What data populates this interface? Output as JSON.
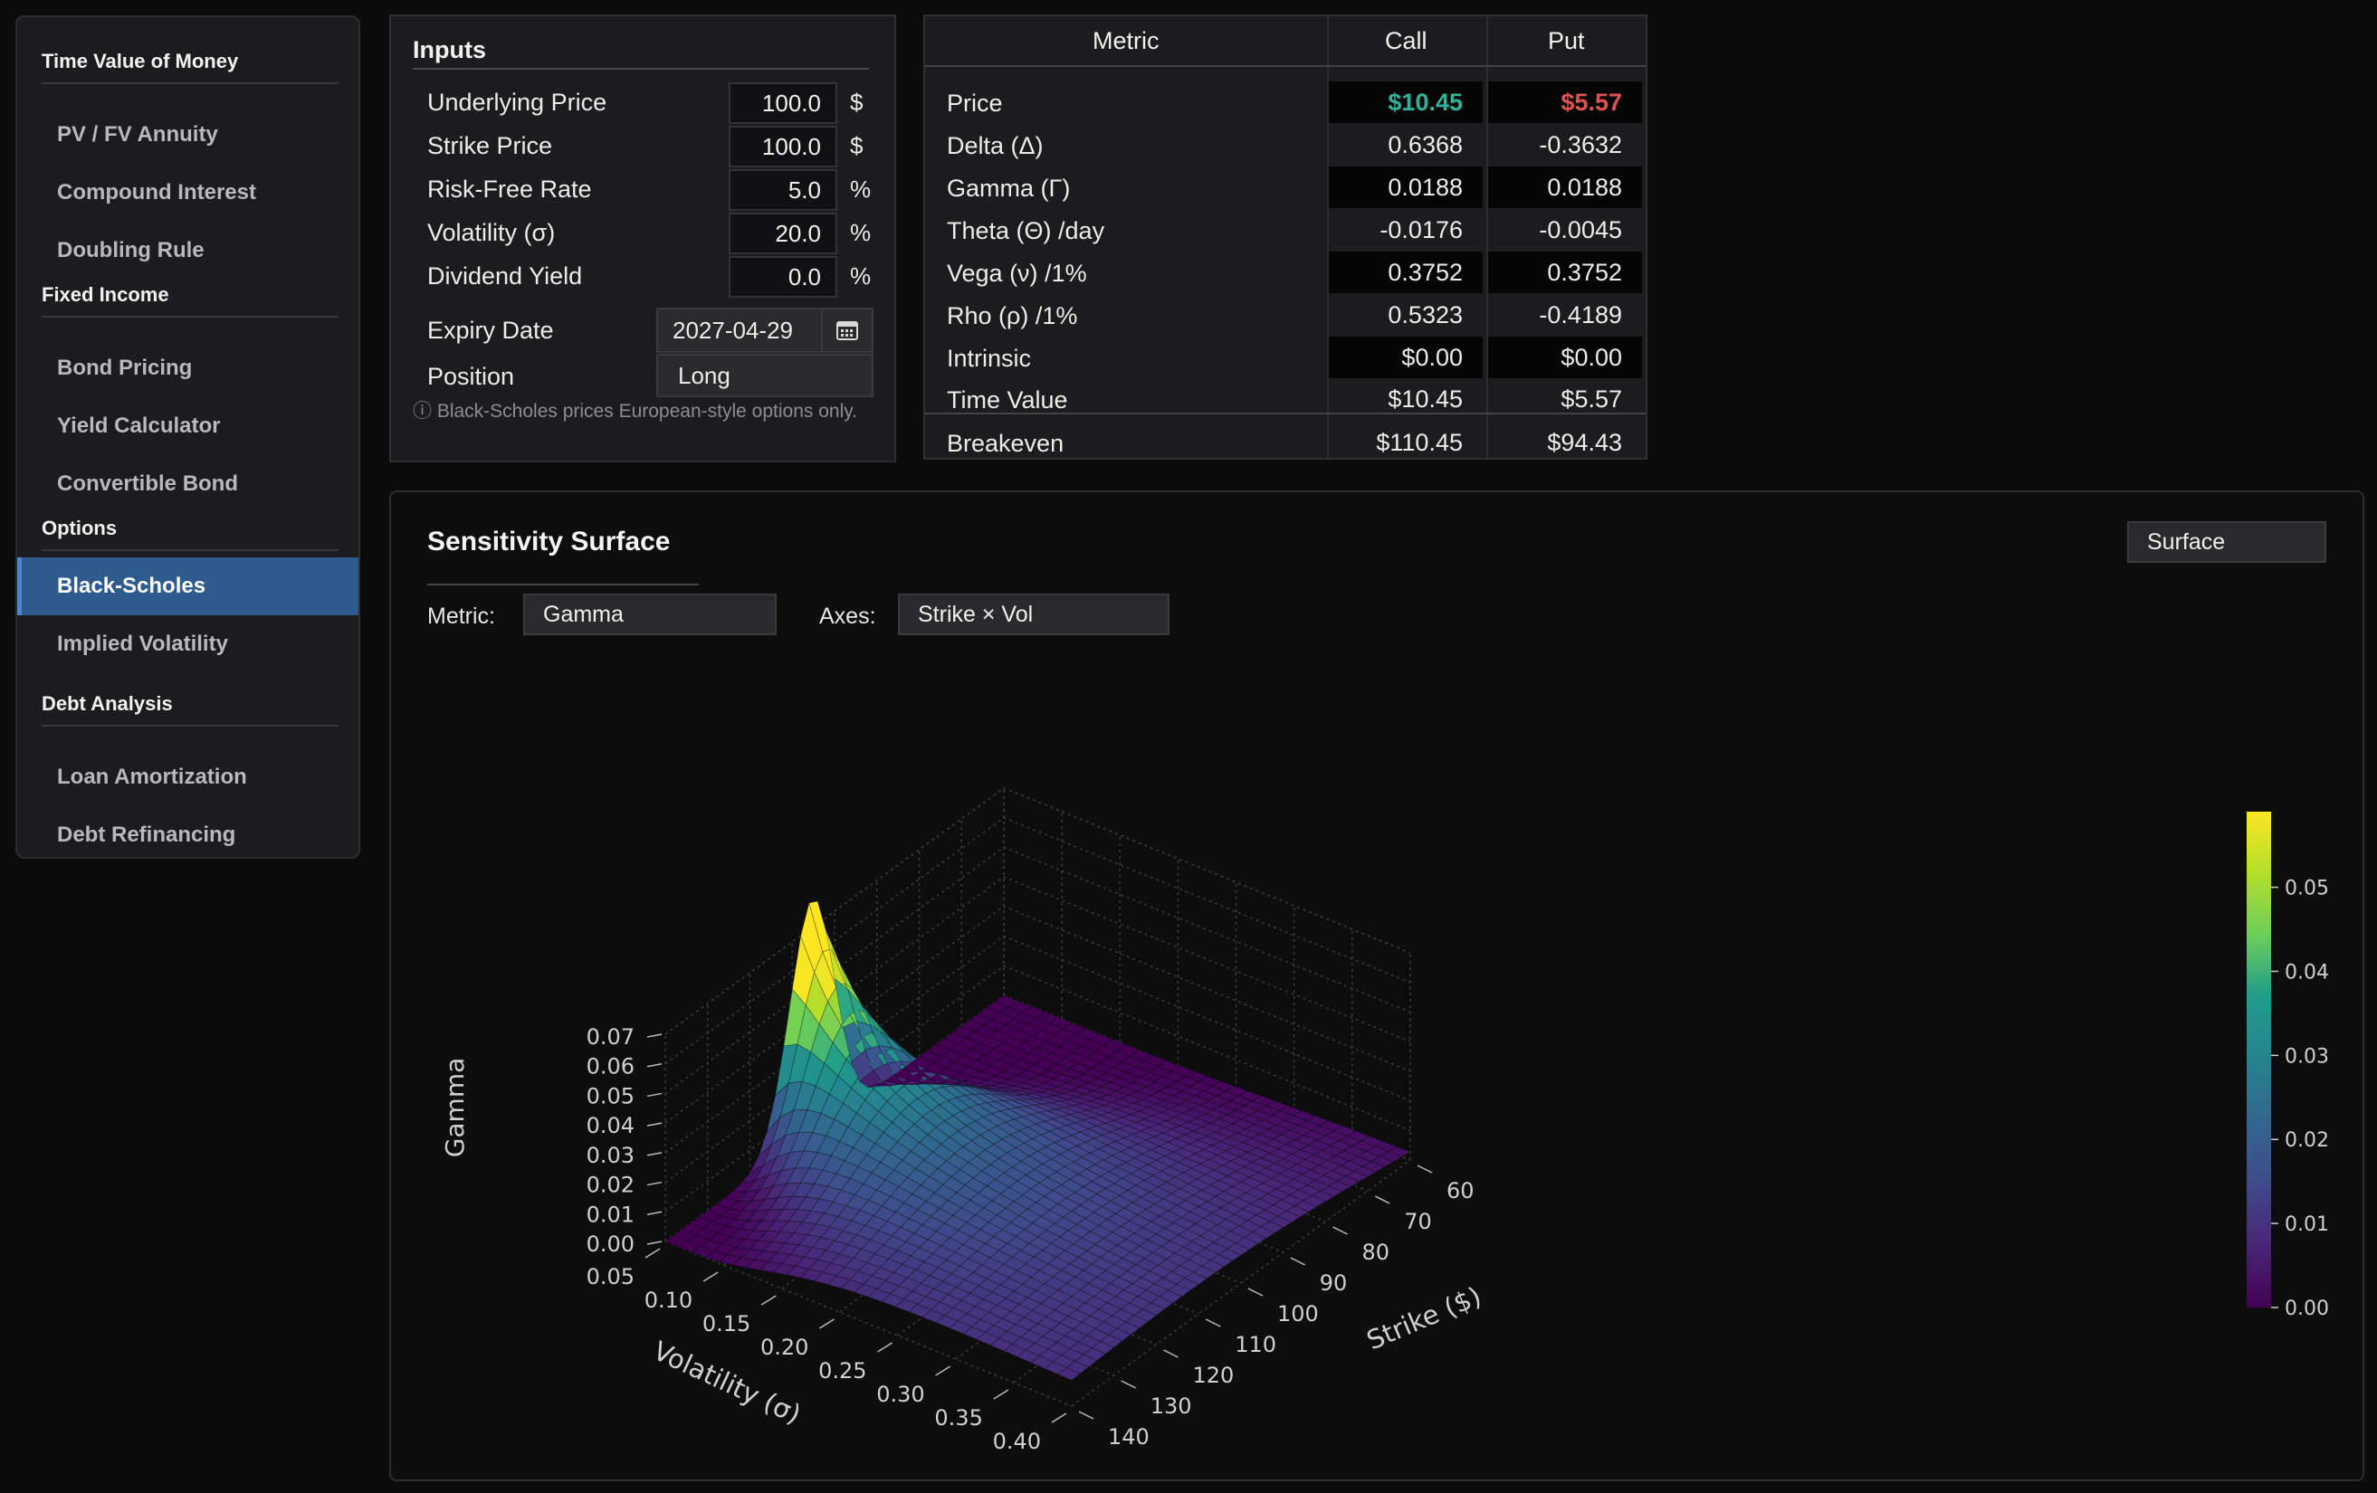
{
  "sidebar": {
    "sections": [
      {
        "title": "Time Value of Money",
        "items": [
          "PV / FV Annuity",
          "Compound Interest",
          "Doubling Rule"
        ]
      },
      {
        "title": "Fixed Income",
        "items": [
          "Bond Pricing",
          "Yield Calculator",
          "Convertible Bond"
        ]
      },
      {
        "title": "Options",
        "items": [
          "Black-Scholes",
          "Implied Volatility"
        ]
      },
      {
        "title": "Debt Analysis",
        "items": [
          "Loan Amortization",
          "Debt Refinancing"
        ]
      }
    ],
    "active_item": "Black-Scholes"
  },
  "inputs": {
    "title": "Inputs",
    "fields": [
      {
        "label": "Underlying Price",
        "value": "100.0",
        "unit": "$"
      },
      {
        "label": "Strike Price",
        "value": "100.0",
        "unit": "$"
      },
      {
        "label": "Risk-Free Rate",
        "value": "5.0",
        "unit": "%"
      },
      {
        "label": "Volatility (σ)",
        "value": "20.0",
        "unit": "%"
      },
      {
        "label": "Dividend Yield",
        "value": "0.0",
        "unit": "%"
      }
    ],
    "expiry_label": "Expiry Date",
    "expiry_value": "2027-04-29",
    "position_label": "Position",
    "position_value": "Long",
    "note": "ⓘ  Black-Scholes prices European-style options only."
  },
  "results": {
    "headers": [
      "Metric",
      "Call",
      "Put"
    ],
    "rows": [
      {
        "metric": "Price",
        "call": "$10.45",
        "put": "$5.57"
      },
      {
        "metric": "Delta (Δ)",
        "call": "0.6368",
        "put": "-0.3632"
      },
      {
        "metric": "Gamma (Γ)",
        "call": "0.0188",
        "put": "0.0188"
      },
      {
        "metric": "Theta (Θ) /day",
        "call": "-0.0176",
        "put": "-0.0045"
      },
      {
        "metric": "Vega (ν) /1%",
        "call": "0.3752",
        "put": "0.3752"
      },
      {
        "metric": "Rho (ρ) /1%",
        "call": "0.5323",
        "put": "-0.4189"
      },
      {
        "metric": "Intrinsic",
        "call": "$0.00",
        "put": "$0.00"
      },
      {
        "metric": "Time Value",
        "call": "$10.45",
        "put": "$5.57"
      },
      {
        "metric": "Breakeven",
        "call": "$110.45",
        "put": "$94.43"
      }
    ],
    "colors": {
      "call_price": "#2fb39a",
      "put_price": "#e05252"
    }
  },
  "surface_panel": {
    "title": "Sensitivity Surface",
    "view_select": "Surface",
    "metric_label": "Metric:",
    "metric_value": "Gamma",
    "axes_label": "Axes:",
    "axes_value": "Strike × Vol"
  },
  "chart_data": {
    "type": "surface",
    "zlabel": "Gamma",
    "xlabel": "Volatility (σ)",
    "ylabel": "Strike ($)",
    "vol_ticks": [
      "0.05",
      "0.10",
      "0.15",
      "0.20",
      "0.25",
      "0.30",
      "0.35",
      "0.40"
    ],
    "strike_ticks": [
      "60",
      "70",
      "80",
      "90",
      "100",
      "110",
      "120",
      "130",
      "140"
    ],
    "gamma_ticks": [
      "0.00",
      "0.01",
      "0.02",
      "0.03",
      "0.04",
      "0.05",
      "0.06",
      "0.07"
    ],
    "colorbar_ticks": [
      "0.00",
      "0.01",
      "0.02",
      "0.03",
      "0.04",
      "0.05"
    ],
    "vol_range": [
      0.05,
      0.4
    ],
    "strike_range": [
      60,
      140
    ],
    "zlim": [
      0,
      0.07
    ],
    "colorbar_range": [
      0,
      0.059
    ],
    "colormap": "viridis",
    "underlying_price": 100,
    "risk_free_rate": 0.05,
    "time_to_expiry_years": 1.0,
    "peak": {
      "vol": 0.05,
      "strike": 100,
      "gamma": 0.072
    }
  }
}
